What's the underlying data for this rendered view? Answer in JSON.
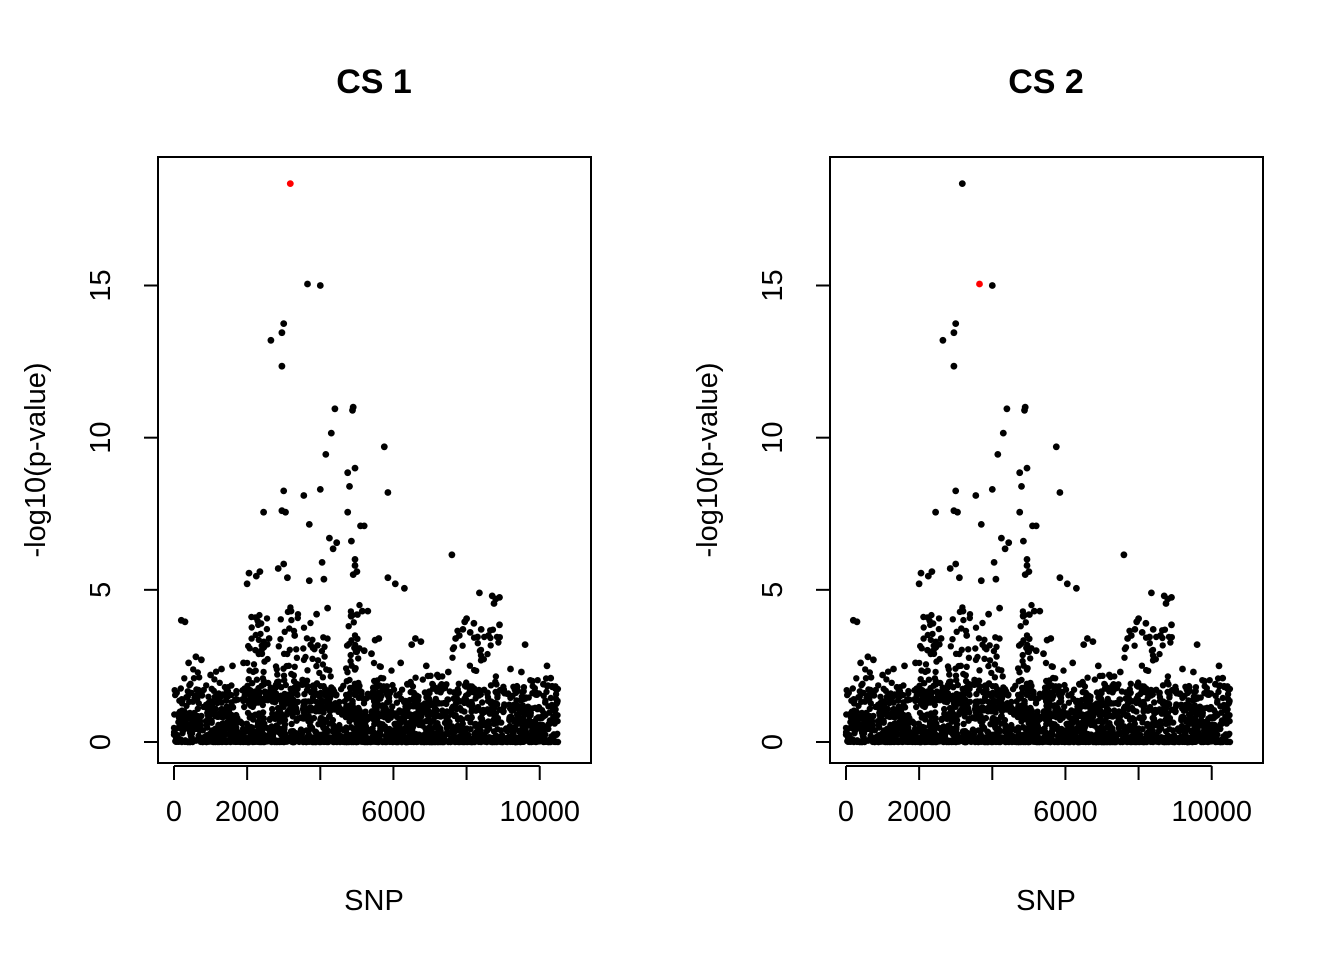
{
  "chart_data": [
    {
      "type": "scatter",
      "title": "CS 1",
      "xlabel": "SNP",
      "ylabel": "-log10(p-value)",
      "xlim": [
        0,
        10500
      ],
      "ylim": [
        0,
        18.5
      ],
      "xticks": [
        0,
        2000,
        4000,
        6000,
        8000,
        10000
      ],
      "xtick_labels": [
        "0",
        "2000",
        "",
        "6000",
        "",
        "10000"
      ],
      "yticks": [
        0,
        5,
        10,
        15
      ],
      "ytick_labels": [
        "0",
        "5",
        "10",
        "15"
      ],
      "grid": false,
      "point_color": "#000000",
      "highlight_color": "#ff0000",
      "highlight": [
        {
          "x": 3180,
          "y": 18.35
        }
      ],
      "points": [
        {
          "x": 3180,
          "y": 18.35
        },
        {
          "x": 3650,
          "y": 15.05
        },
        {
          "x": 4000,
          "y": 15.0
        },
        {
          "x": 3000,
          "y": 13.75
        },
        {
          "x": 2950,
          "y": 13.45
        },
        {
          "x": 2650,
          "y": 13.2
        },
        {
          "x": 2950,
          "y": 12.35
        },
        {
          "x": 4400,
          "y": 10.95
        },
        {
          "x": 4900,
          "y": 11.0
        },
        {
          "x": 4880,
          "y": 10.9
        },
        {
          "x": 4300,
          "y": 10.15
        },
        {
          "x": 5750,
          "y": 9.7
        },
        {
          "x": 4150,
          "y": 9.45
        },
        {
          "x": 4950,
          "y": 9.0
        },
        {
          "x": 4750,
          "y": 8.85
        },
        {
          "x": 3000,
          "y": 8.25
        },
        {
          "x": 4000,
          "y": 8.3
        },
        {
          "x": 5850,
          "y": 8.2
        },
        {
          "x": 3550,
          "y": 8.1
        },
        {
          "x": 4800,
          "y": 8.4
        },
        {
          "x": 2450,
          "y": 7.55
        },
        {
          "x": 2950,
          "y": 7.6
        },
        {
          "x": 3050,
          "y": 7.55
        },
        {
          "x": 3700,
          "y": 7.15
        },
        {
          "x": 4750,
          "y": 7.55
        },
        {
          "x": 5100,
          "y": 7.1
        },
        {
          "x": 5200,
          "y": 7.1
        },
        {
          "x": 4250,
          "y": 6.7
        },
        {
          "x": 4450,
          "y": 6.55
        },
        {
          "x": 4350,
          "y": 6.35
        },
        {
          "x": 4850,
          "y": 6.6
        },
        {
          "x": 7600,
          "y": 6.15
        },
        {
          "x": 3000,
          "y": 5.85
        },
        {
          "x": 2850,
          "y": 5.7
        },
        {
          "x": 4050,
          "y": 5.9
        },
        {
          "x": 4950,
          "y": 6.0
        },
        {
          "x": 2050,
          "y": 5.55
        },
        {
          "x": 2350,
          "y": 5.6
        },
        {
          "x": 2250,
          "y": 5.45
        },
        {
          "x": 2000,
          "y": 5.2
        },
        {
          "x": 3100,
          "y": 5.4
        },
        {
          "x": 3700,
          "y": 5.3
        },
        {
          "x": 4100,
          "y": 5.35
        },
        {
          "x": 5850,
          "y": 5.4
        },
        {
          "x": 6050,
          "y": 5.2
        },
        {
          "x": 6300,
          "y": 5.05
        },
        {
          "x": 4900,
          "y": 5.5
        },
        {
          "x": 4950,
          "y": 5.8
        },
        {
          "x": 5000,
          "y": 5.6
        },
        {
          "x": 8350,
          "y": 4.9
        },
        {
          "x": 8700,
          "y": 4.8
        },
        {
          "x": 8800,
          "y": 4.7
        },
        {
          "x": 8900,
          "y": 4.75
        },
        {
          "x": 8750,
          "y": 4.55
        },
        {
          "x": 5300,
          "y": 4.3
        },
        {
          "x": 5150,
          "y": 4.3
        },
        {
          "x": 3200,
          "y": 4.3
        },
        {
          "x": 4200,
          "y": 4.4
        },
        {
          "x": 3900,
          "y": 4.2
        },
        {
          "x": 200,
          "y": 4.0
        },
        {
          "x": 300,
          "y": 3.95
        },
        {
          "x": 8000,
          "y": 4.05
        },
        {
          "x": 7950,
          "y": 3.95
        },
        {
          "x": 8200,
          "y": 3.9
        },
        {
          "x": 8900,
          "y": 3.85
        },
        {
          "x": 7900,
          "y": 3.7
        },
        {
          "x": 8100,
          "y": 3.6
        },
        {
          "x": 8400,
          "y": 3.7
        },
        {
          "x": 8600,
          "y": 3.5
        },
        {
          "x": 7700,
          "y": 3.4
        },
        {
          "x": 7800,
          "y": 3.5
        },
        {
          "x": 8300,
          "y": 3.45
        },
        {
          "x": 6600,
          "y": 3.4
        },
        {
          "x": 6750,
          "y": 3.3
        },
        {
          "x": 6500,
          "y": 3.2
        },
        {
          "x": 9600,
          "y": 3.2
        },
        {
          "x": 2600,
          "y": 3.4
        },
        {
          "x": 3300,
          "y": 3.5
        },
        {
          "x": 3800,
          "y": 3.1
        },
        {
          "x": 5600,
          "y": 3.4
        },
        {
          "x": 5500,
          "y": 3.35
        },
        {
          "x": 2400,
          "y": 2.9
        },
        {
          "x": 1900,
          "y": 2.6
        },
        {
          "x": 1600,
          "y": 2.5
        },
        {
          "x": 1300,
          "y": 2.4
        },
        {
          "x": 600,
          "y": 2.8
        },
        {
          "x": 750,
          "y": 2.7
        },
        {
          "x": 400,
          "y": 2.6
        },
        {
          "x": 1000,
          "y": 2.2
        },
        {
          "x": 5400,
          "y": 2.9
        },
        {
          "x": 5200,
          "y": 3.0
        },
        {
          "x": 6200,
          "y": 2.6
        },
        {
          "x": 6900,
          "y": 2.5
        },
        {
          "x": 7200,
          "y": 2.2
        },
        {
          "x": 7500,
          "y": 2.3
        },
        {
          "x": 9200,
          "y": 2.4
        },
        {
          "x": 9500,
          "y": 2.3
        },
        {
          "x": 10200,
          "y": 2.5
        },
        {
          "x": 10300,
          "y": 2.1
        },
        {
          "x": 9800,
          "y": 2.0
        },
        {
          "x": 10100,
          "y": 1.9
        }
      ],
      "background_points": {
        "x_range": [
          0,
          10500
        ],
        "n": 1800,
        "y_max": 1.9
      }
    },
    {
      "type": "scatter",
      "title": "CS 2",
      "xlabel": "SNP",
      "ylabel": "-log10(p-value)",
      "xlim": [
        0,
        10500
      ],
      "ylim": [
        0,
        18.5
      ],
      "xticks": [
        0,
        2000,
        4000,
        6000,
        8000,
        10000
      ],
      "xtick_labels": [
        "0",
        "2000",
        "",
        "6000",
        "",
        "10000"
      ],
      "yticks": [
        0,
        5,
        10,
        15
      ],
      "ytick_labels": [
        "0",
        "5",
        "10",
        "15"
      ],
      "grid": false,
      "point_color": "#000000",
      "highlight_color": "#ff0000",
      "highlight": [
        {
          "x": 3650,
          "y": 15.05
        }
      ],
      "points": "same as CS 1",
      "background_points": {
        "x_range": [
          0,
          10500
        ],
        "n": 1800,
        "y_max": 1.9
      }
    }
  ]
}
